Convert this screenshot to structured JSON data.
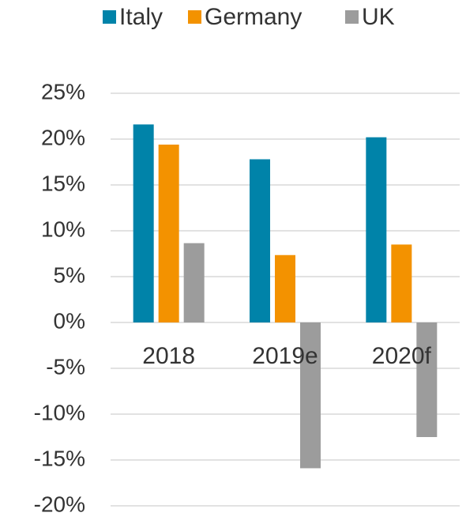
{
  "chart_data": {
    "type": "bar",
    "categories": [
      "2018",
      "2019e",
      "2020f"
    ],
    "series": [
      {
        "name": "Italy",
        "color": "#0083a9",
        "values": [
          21.6,
          17.8,
          20.2
        ]
      },
      {
        "name": "Germany",
        "color": "#f39200",
        "values": [
          19.4,
          7.35,
          8.5
        ]
      },
      {
        "name": "UK",
        "color": "#9c9c9c",
        "values": [
          8.65,
          -15.9,
          -12.5
        ]
      }
    ],
    "ylim": [
      -20,
      25
    ],
    "yticks": [
      {
        "value": -20,
        "label": "-20%"
      },
      {
        "value": -15,
        "label": "-15%"
      },
      {
        "value": -10,
        "label": "-10%"
      },
      {
        "value": -5,
        "label": "-5%"
      },
      {
        "value": 0,
        "label": "0%"
      },
      {
        "value": 5,
        "label": "5%"
      },
      {
        "value": 10,
        "label": "10%"
      },
      {
        "value": 15,
        "label": "15%"
      },
      {
        "value": 20,
        "label": "20%"
      },
      {
        "value": 25,
        "label": "25%"
      }
    ],
    "grid": true,
    "legend": "top"
  }
}
